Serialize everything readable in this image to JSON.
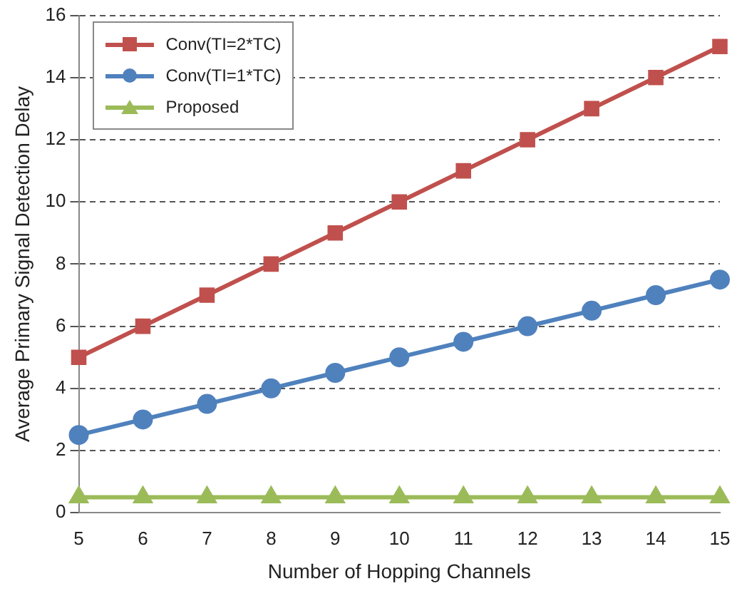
{
  "chart_data": {
    "type": "line",
    "xlabel": "Number of Hopping Channels",
    "ylabel": "Average Primary Signal Detection Delay",
    "categories": [
      "5",
      "6",
      "7",
      "8",
      "9",
      "10",
      "11",
      "12",
      "13",
      "14",
      "15"
    ],
    "series": [
      {
        "name": "Conv(TI=2*TC)",
        "color": "#c0504d",
        "marker": "square",
        "values": [
          5,
          6,
          7,
          8,
          9,
          10,
          11,
          12,
          13,
          14,
          15
        ]
      },
      {
        "name": "Conv(TI=1*TC)",
        "color": "#4f81bd",
        "marker": "circle",
        "values": [
          2.5,
          3,
          3.5,
          4,
          4.5,
          5,
          5.5,
          6,
          6.5,
          7,
          7.5
        ]
      },
      {
        "name": "Proposed",
        "color": "#9bbb59",
        "marker": "triangle",
        "values": [
          0.5,
          0.5,
          0.5,
          0.5,
          0.5,
          0.5,
          0.5,
          0.5,
          0.5,
          0.5,
          0.5
        ]
      }
    ],
    "ylim": [
      0,
      16
    ],
    "yticks": [
      0,
      2,
      4,
      6,
      8,
      10,
      12,
      14,
      16
    ],
    "grid": "y",
    "legend": "top left"
  }
}
